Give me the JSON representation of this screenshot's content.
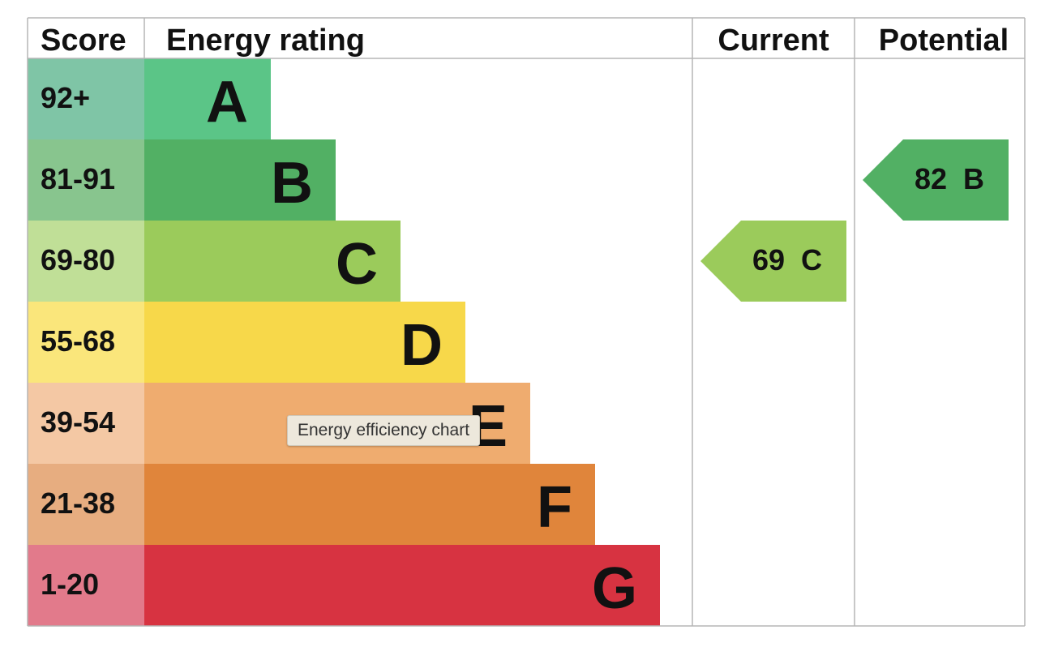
{
  "header": {
    "score": "Score",
    "energy_rating": "Energy rating",
    "current": "Current",
    "potential": "Potential"
  },
  "tooltip": "Energy efficiency chart",
  "chart_data": {
    "type": "bar",
    "categories": [
      "A",
      "B",
      "C",
      "D",
      "E",
      "F",
      "G"
    ],
    "score_ranges": [
      "92+",
      "81-91",
      "69-80",
      "55-68",
      "39-54",
      "21-38",
      "1-20"
    ],
    "bar_colors": [
      "#5bc587",
      "#52b064",
      "#9bcb5b",
      "#f7d84a",
      "#efac6f",
      "#e0853b",
      "#d73341"
    ],
    "score_cell_colors": [
      "#7fc5a6",
      "#88c58e",
      "#c0df97",
      "#fae67b",
      "#f4c8a4",
      "#e7ad80",
      "#e27a8b"
    ],
    "current": {
      "value": 69,
      "band": "C",
      "color": "#9bcb5b"
    },
    "potential": {
      "value": 82,
      "band": "B",
      "color": "#52b064"
    }
  }
}
